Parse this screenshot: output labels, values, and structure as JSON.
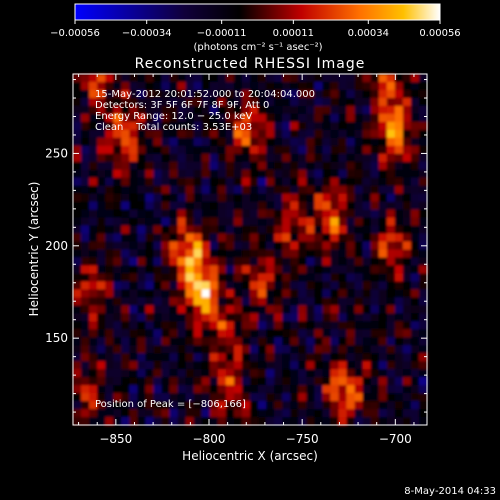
{
  "chart_data": {
    "type": "heatmap",
    "title": "Reconstructed RHESSI Image",
    "xlabel": "Heliocentric X (arcsec)",
    "ylabel": "Heliocentric Y (arcsec)",
    "xlim": [
      -873,
      -683
    ],
    "ylim": [
      103,
      293
    ],
    "x_ticks": [
      -850,
      -800,
      -750,
      -700
    ],
    "y_ticks": [
      150,
      200,
      250
    ],
    "x_tick_labels": [
      "−850",
      "−800",
      "−750",
      "−700"
    ],
    "y_tick_labels": [
      "150",
      "200",
      "250"
    ],
    "colorbar": {
      "min": -0.00056,
      "max": 0.00056,
      "tick_values": [
        -0.00056,
        -0.00034,
        -0.00011,
        0.00011,
        0.00034,
        0.00056
      ],
      "tick_labels": [
        "−0.00056",
        "−0.00034",
        "−0.00011",
        "0.00011",
        "0.00034",
        "0.00056"
      ],
      "units_label": "(photons cm⁻² s⁻¹ asec⁻²)",
      "colormap": [
        "#0000ff",
        "#000000",
        "#ff0000",
        "#ffb400",
        "#ffffff"
      ]
    },
    "annotations": [
      "15‑May‑2012 20:01:52.000 to 20:04:04.000",
      "Detectors: 3F 5F 6F 7F 8F 9F, Att 0",
      "Energy Range: 12.0 − 25.0 keV",
      "Clean    Total counts: 3.53E+03"
    ],
    "peak_text": "Position of Peak = [−806,166]",
    "peak_position": [
      -806,
      166
    ],
    "bright_sources": [
      {
        "x": -804,
        "y": 175,
        "peak": 0.00056
      },
      {
        "x": -811,
        "y": 196,
        "peak": 0.00045
      },
      {
        "x": -790,
        "y": 150,
        "peak": 0.0003
      },
      {
        "x": -845,
        "y": 258,
        "peak": 0.00042
      },
      {
        "x": -780,
        "y": 262,
        "peak": 0.00036
      },
      {
        "x": -700,
        "y": 262,
        "peak": 0.00045
      },
      {
        "x": -727,
        "y": 122,
        "peak": 0.00045
      },
      {
        "x": -755,
        "y": 210,
        "peak": 0.0003
      },
      {
        "x": -735,
        "y": 215,
        "peak": 0.00035
      },
      {
        "x": -702,
        "y": 200,
        "peak": 0.0003
      },
      {
        "x": -772,
        "y": 180,
        "peak": 0.00025
      },
      {
        "x": -862,
        "y": 175,
        "peak": 0.00028
      },
      {
        "x": -865,
        "y": 120,
        "peak": 0.00025
      },
      {
        "x": -790,
        "y": 120,
        "peak": 0.00025
      },
      {
        "x": -860,
        "y": 290,
        "peak": 0.0003
      },
      {
        "x": -705,
        "y": 290,
        "peak": 0.0003
      }
    ]
  },
  "footer_date": "8‑May‑2014 04:33"
}
